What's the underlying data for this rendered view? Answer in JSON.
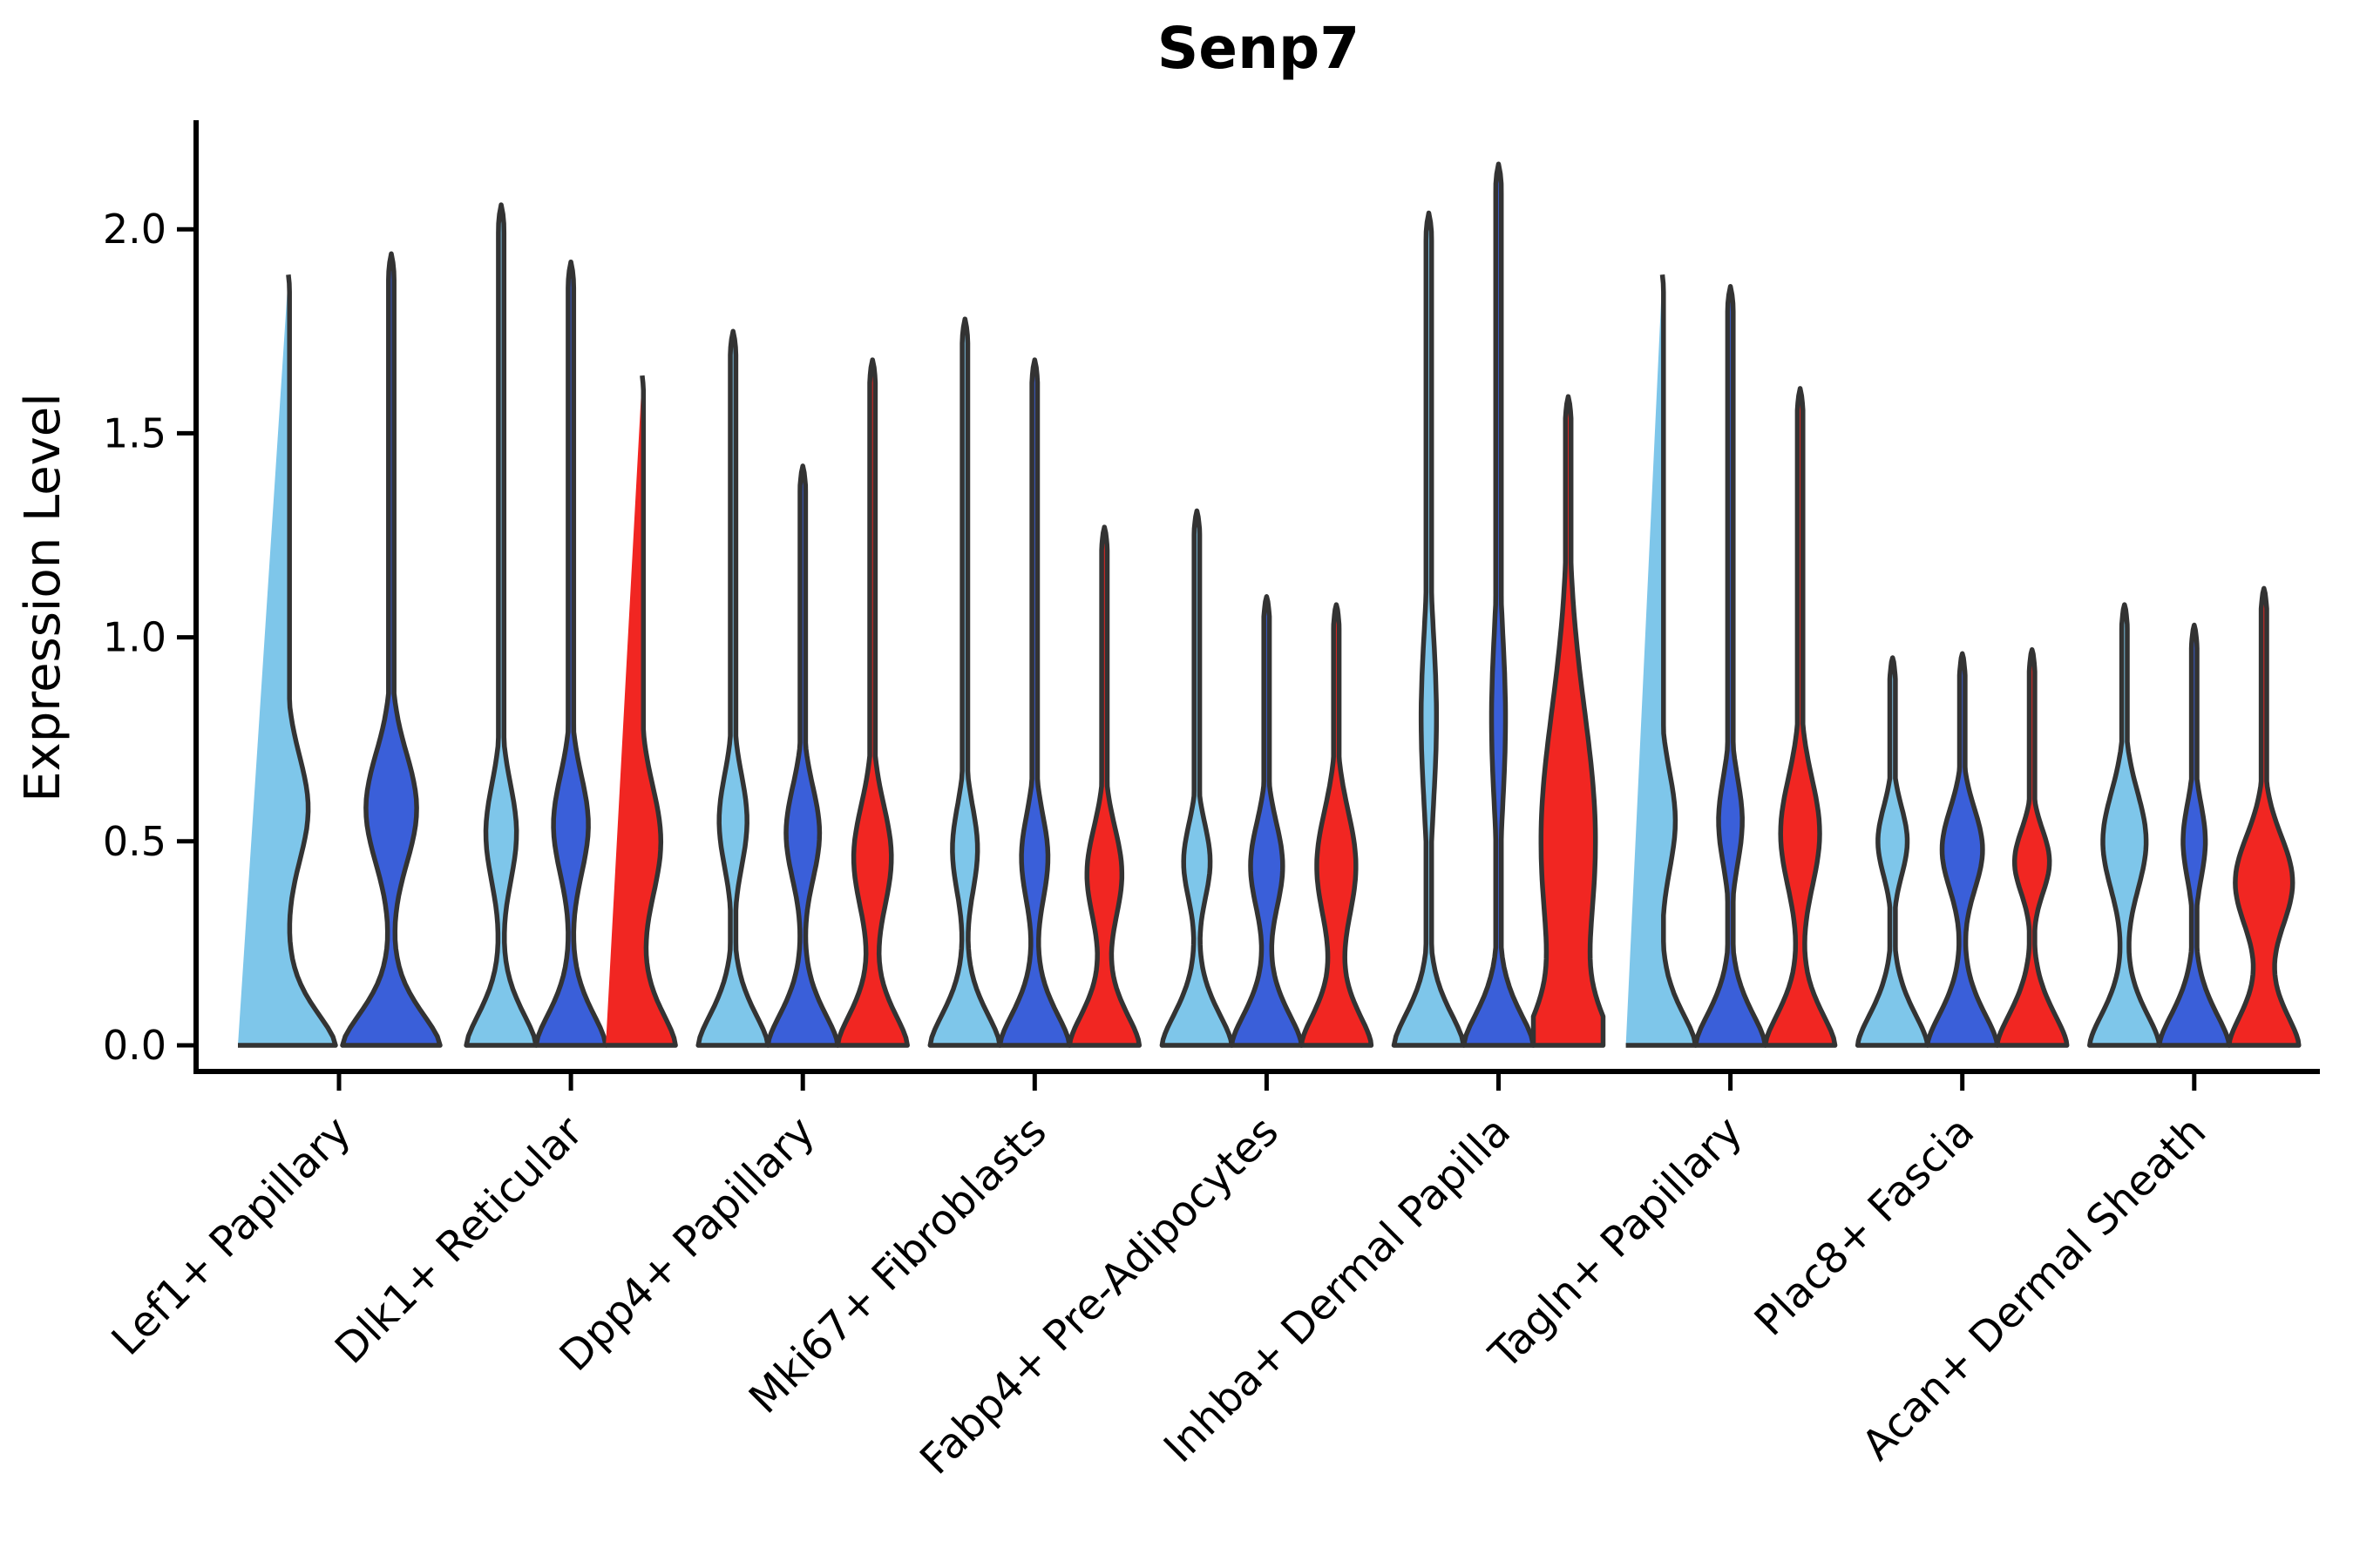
{
  "chart_data": {
    "type": "violin",
    "title": "Senp7",
    "ylabel": "Expression Level",
    "xlabel": "",
    "yticks": [
      0.0,
      0.5,
      1.0,
      1.5,
      2.0
    ],
    "ylim": [
      -0.06,
      2.26
    ],
    "grid": false,
    "legend_position": "none",
    "outline_color": "#333333",
    "axis_color": "#000000",
    "splits": [
      {
        "name": "light-blue",
        "color": "#7EC6EA"
      },
      {
        "name": "dark-blue",
        "color": "#3A5FD9"
      },
      {
        "name": "red",
        "color": "#F12622"
      }
    ],
    "categories": [
      "Lef1+ Papillary",
      "Dlk1+ Reticular",
      "Dpp4+ Papillary",
      "Mki67+ Fibroblasts",
      "Fabp4+ Pre-Adipocytes",
      "Inhba+ Dermal Papilla",
      "Tagln+ Papillary",
      "Plac8+ Fascia",
      "Acan+ Dermal Sheath"
    ],
    "groups": [
      {
        "category": "Lef1+ Papillary",
        "violins": [
          {
            "split": "light-blue",
            "max_expression": 1.91,
            "zero_peak": true,
            "bulge_center": 0.58,
            "bulge_spread": 0.18,
            "bulge_rel_width": 0.44
          },
          {
            "split": "dark-blue",
            "max_expression": 1.94,
            "zero_peak": true,
            "bulge_center": 0.58,
            "bulge_spread": 0.19,
            "bulge_rel_width": 0.52
          }
        ]
      },
      {
        "category": "Dlk1+ Reticular",
        "violins": [
          {
            "split": "light-blue",
            "max_expression": 2.06,
            "zero_peak": true,
            "bulge_center": 0.52,
            "bulge_spread": 0.17,
            "bulge_rel_width": 0.44
          },
          {
            "split": "dark-blue",
            "max_expression": 1.92,
            "zero_peak": true,
            "bulge_center": 0.54,
            "bulge_spread": 0.17,
            "bulge_rel_width": 0.5
          },
          {
            "split": "red",
            "max_expression": 1.66,
            "zero_peak": true,
            "bulge_center": 0.5,
            "bulge_spread": 0.19,
            "bulge_rel_width": 0.58
          }
        ]
      },
      {
        "category": "Dpp4+ Papillary",
        "violins": [
          {
            "split": "light-blue",
            "max_expression": 1.75,
            "zero_peak": true,
            "bulge_center": 0.55,
            "bulge_spread": 0.16,
            "bulge_rel_width": 0.4
          },
          {
            "split": "dark-blue",
            "max_expression": 1.42,
            "zero_peak": true,
            "bulge_center": 0.52,
            "bulge_spread": 0.16,
            "bulge_rel_width": 0.48
          },
          {
            "split": "red",
            "max_expression": 1.68,
            "zero_peak": true,
            "bulge_center": 0.46,
            "bulge_spread": 0.18,
            "bulge_rel_width": 0.54
          }
        ]
      },
      {
        "category": "Mki67+ Fibroblasts",
        "violins": [
          {
            "split": "light-blue",
            "max_expression": 1.78,
            "zero_peak": true,
            "bulge_center": 0.48,
            "bulge_spread": 0.15,
            "bulge_rel_width": 0.36
          },
          {
            "split": "dark-blue",
            "max_expression": 1.68,
            "zero_peak": true,
            "bulge_center": 0.46,
            "bulge_spread": 0.15,
            "bulge_rel_width": 0.38
          },
          {
            "split": "red",
            "max_expression": 1.27,
            "zero_peak": true,
            "bulge_center": 0.42,
            "bulge_spread": 0.16,
            "bulge_rel_width": 0.5
          }
        ]
      },
      {
        "category": "Fabp4+ Pre-Adipocytes",
        "violins": [
          {
            "split": "light-blue",
            "max_expression": 1.31,
            "zero_peak": true,
            "bulge_center": 0.45,
            "bulge_spread": 0.13,
            "bulge_rel_width": 0.38
          },
          {
            "split": "dark-blue",
            "max_expression": 1.1,
            "zero_peak": true,
            "bulge_center": 0.44,
            "bulge_spread": 0.15,
            "bulge_rel_width": 0.46
          },
          {
            "split": "red",
            "max_expression": 1.08,
            "zero_peak": true,
            "bulge_center": 0.44,
            "bulge_spread": 0.19,
            "bulge_rel_width": 0.56
          }
        ]
      },
      {
        "category": "Inhba+ Dermal Papilla",
        "violins": [
          {
            "split": "light-blue",
            "max_expression": 2.04,
            "zero_peak": true,
            "bulge_center": 0.8,
            "bulge_spread": 0.3,
            "bulge_rel_width": 0.22
          },
          {
            "split": "dark-blue",
            "max_expression": 2.16,
            "zero_peak": true,
            "bulge_center": 0.8,
            "bulge_spread": 0.3,
            "bulge_rel_width": 0.2
          },
          {
            "split": "red",
            "max_expression": 1.59,
            "zero_peak": true,
            "bulge_center": 0.5,
            "bulge_spread": 0.45,
            "bulge_rel_width": 0.78
          }
        ]
      },
      {
        "category": "Tagln+ Papillary",
        "violins": [
          {
            "split": "light-blue",
            "max_expression": 1.91,
            "zero_peak": true,
            "bulge_center": 0.55,
            "bulge_spread": 0.17,
            "bulge_rel_width": 0.42
          },
          {
            "split": "dark-blue",
            "max_expression": 1.86,
            "zero_peak": true,
            "bulge_center": 0.55,
            "bulge_spread": 0.15,
            "bulge_rel_width": 0.34
          },
          {
            "split": "red",
            "max_expression": 1.61,
            "zero_peak": true,
            "bulge_center": 0.52,
            "bulge_spread": 0.19,
            "bulge_rel_width": 0.56
          }
        ]
      },
      {
        "category": "Plac8+ Fascia",
        "violins": [
          {
            "split": "light-blue",
            "max_expression": 0.95,
            "zero_peak": true,
            "bulge_center": 0.5,
            "bulge_spread": 0.12,
            "bulge_rel_width": 0.42
          },
          {
            "split": "dark-blue",
            "max_expression": 0.96,
            "zero_peak": true,
            "bulge_center": 0.48,
            "bulge_spread": 0.14,
            "bulge_rel_width": 0.58
          },
          {
            "split": "red",
            "max_expression": 0.97,
            "zero_peak": true,
            "bulge_center": 0.45,
            "bulge_spread": 0.11,
            "bulge_rel_width": 0.5
          }
        ]
      },
      {
        "category": "Acan+ Dermal Sheath",
        "violins": [
          {
            "split": "light-blue",
            "max_expression": 1.08,
            "zero_peak": true,
            "bulge_center": 0.5,
            "bulge_spread": 0.17,
            "bulge_rel_width": 0.62
          },
          {
            "split": "dark-blue",
            "max_expression": 1.03,
            "zero_peak": true,
            "bulge_center": 0.5,
            "bulge_spread": 0.13,
            "bulge_rel_width": 0.32
          },
          {
            "split": "red",
            "max_expression": 1.12,
            "zero_peak": true,
            "bulge_center": 0.4,
            "bulge_spread": 0.16,
            "bulge_rel_width": 0.82
          }
        ]
      }
    ]
  }
}
